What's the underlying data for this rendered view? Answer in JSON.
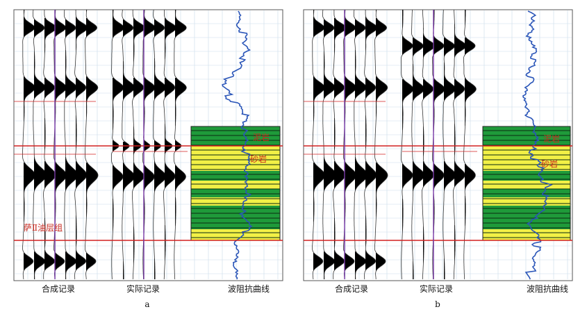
{
  "panels": [
    {
      "id": "a",
      "panel_label": "a",
      "column_labels": {
        "synthetic": "合成记录",
        "actual": "实际记录",
        "impedance": "波阻抗曲线"
      },
      "lithology_labels": {
        "mudstone": "泥岩",
        "sandstone": "砂岩"
      },
      "formation_label": "萨Ⅱ油层组"
    },
    {
      "id": "b",
      "panel_label": "b",
      "column_labels": {
        "synthetic": "合成记录",
        "actual": "实际记录",
        "impedance": "波阻抗曲线"
      },
      "lithology_labels": {
        "mudstone": "泥岩",
        "sandstone": "砂岩"
      },
      "formation_label": ""
    }
  ],
  "colors": {
    "wavelet_fill": "#000000",
    "horizon_line": "#d22020",
    "well_tie_line": "#7a3aa8",
    "impedance_curve": "#2a55b8",
    "lithology_mudstone": "#1f9a3a",
    "lithology_sandstone": "#f2f046",
    "label_text": "#c8281e",
    "grid": "#c9dcea"
  }
}
